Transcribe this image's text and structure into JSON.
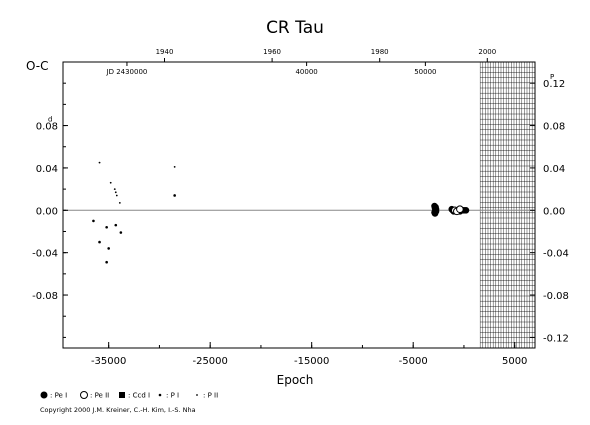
{
  "chart_data": {
    "type": "scatter",
    "title": "CR Tau",
    "ylabel": "O-C",
    "xlabel": "Epoch",
    "xlim": [
      -39500,
      7000
    ],
    "ylim": [
      -0.13,
      0.14
    ],
    "left_y_ticks": [
      {
        "value": 0.08,
        "label": "0.08",
        "superscript": "d"
      },
      {
        "value": 0.04,
        "label": "0.04"
      },
      {
        "value": 0.0,
        "label": "0.00"
      },
      {
        "value": -0.04,
        "label": "-0.04"
      },
      {
        "value": -0.08,
        "label": "-0.08"
      }
    ],
    "right_y_ticks": [
      {
        "value": 0.12,
        "label": "0.12",
        "superscript": "P"
      },
      {
        "value": 0.08,
        "label": "0.08"
      },
      {
        "value": 0.04,
        "label": "0.04"
      },
      {
        "value": 0.0,
        "label": "0.00"
      },
      {
        "value": -0.04,
        "label": "-0.04"
      },
      {
        "value": -0.08,
        "label": "-0.08"
      },
      {
        "value": -0.12,
        "label": "-0.12"
      }
    ],
    "x_ticks": [
      {
        "value": -35000,
        "label": "-35000"
      },
      {
        "value": -25000,
        "label": "-25000"
      },
      {
        "value": -15000,
        "label": "-15000"
      },
      {
        "value": -5000,
        "label": "-5000"
      },
      {
        "value": 5000,
        "label": "5000"
      }
    ],
    "year_ticks": [
      {
        "value": -29500,
        "label": "1940"
      },
      {
        "value": -18900,
        "label": "1960"
      },
      {
        "value": -8300,
        "label": "1980"
      },
      {
        "value": 2300,
        "label": "2000"
      }
    ],
    "jd_labels": [
      {
        "value": -33200,
        "label": "JD 2430000"
      },
      {
        "value": -15500,
        "label": "40000"
      },
      {
        "value": -3800,
        "label": "50000"
      }
    ],
    "hatch_region": [
      1600,
      7000
    ],
    "series": [
      {
        "name": ": Pe I",
        "marker": "filled-circle",
        "points": [
          [
            -2900,
            0.004
          ],
          [
            -2850,
            0.002
          ],
          [
            -2800,
            0.0
          ],
          [
            -2750,
            -0.001
          ],
          [
            -2850,
            -0.003
          ],
          [
            -2800,
            0.003
          ],
          [
            -2900,
            -0.002
          ],
          [
            -2750,
            0.001
          ],
          [
            -1200,
            0.001
          ],
          [
            -1100,
            0.0
          ],
          [
            -1000,
            -0.001
          ],
          [
            -500,
            0.0
          ],
          [
            -400,
            -0.001
          ],
          [
            -200,
            0.0
          ],
          [
            0,
            0.0
          ],
          [
            200,
            0.0
          ]
        ]
      },
      {
        "name": ": Pe II",
        "marker": "open-circle",
        "points": [
          [
            -900,
            0.0
          ],
          [
            -700,
            -0.001
          ],
          [
            -400,
            0.001
          ]
        ]
      },
      {
        "name": ": Ccd I",
        "marker": "filled-square",
        "points": []
      },
      {
        "name": ": P I",
        "marker": "small-dot",
        "points": [
          [
            -36500,
            -0.01
          ],
          [
            -35200,
            -0.016
          ],
          [
            -35000,
            -0.036
          ],
          [
            -35900,
            -0.03
          ],
          [
            -35200,
            -0.049
          ],
          [
            -34300,
            -0.014
          ],
          [
            -33800,
            -0.021
          ],
          [
            -28500,
            0.014
          ]
        ]
      },
      {
        "name": ": P II",
        "marker": "tiny-dot",
        "points": [
          [
            -35900,
            0.045
          ],
          [
            -34800,
            0.026
          ],
          [
            -34400,
            0.02
          ],
          [
            -34300,
            0.017
          ],
          [
            -34200,
            0.014
          ],
          [
            -33900,
            0.007
          ],
          [
            -28500,
            0.041
          ]
        ]
      }
    ]
  },
  "copyright": "Copyright 2000 J.M. Kreiner, C.-H. Kim, I.-S. Nha",
  "colors": {
    "ink": "#000000",
    "background": "#ffffff",
    "zero_line": "#888888"
  }
}
